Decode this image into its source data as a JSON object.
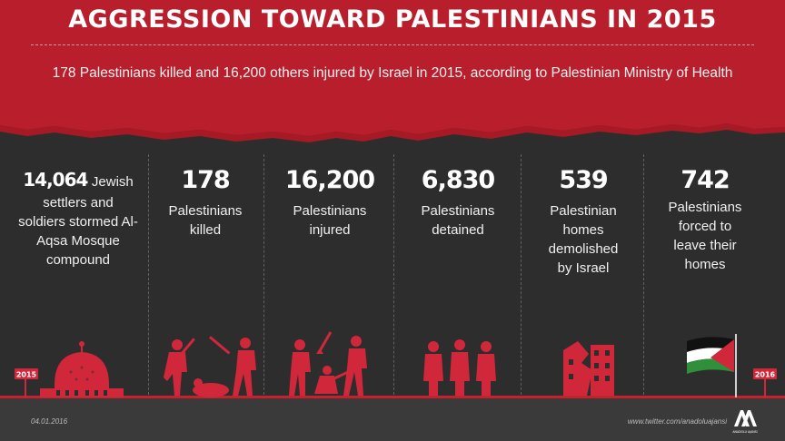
{
  "header": {
    "title": "AGGRESSION TOWARD PALESTINIANS IN 2015",
    "subtitle": "178 Palestinians killed and 16,200 others injured by Israel in 2015, according to Palestinian Ministry of Health"
  },
  "stats": {
    "aqsa": {
      "value": "14,064",
      "label_head": "Jewish",
      "label_rest": "settlers and soldiers stormed Al-Aqsa Mosque compound"
    },
    "killed": {
      "value": "178",
      "label": "Palestinians killed"
    },
    "injured": {
      "value": "16,200",
      "label": "Palestinians injured"
    },
    "detained": {
      "value": "6,830",
      "label": "Palestinians detained"
    },
    "demolished": {
      "value": "539",
      "label": "Palestinian homes demolished by Israel"
    },
    "displaced": {
      "value": "742",
      "label": "Palestinians forced to leave their homes"
    }
  },
  "signs": {
    "left": "2015",
    "right": "2016"
  },
  "footer": {
    "date": "04.01.2016",
    "url": "www.twitter.com/anadoluajansi",
    "logo_text": "ANADOLU AJANSI"
  },
  "colors": {
    "red": "#c8202c",
    "dark": "#2d2d2d",
    "illustration": "#d0283a"
  },
  "icons": [
    "dome-of-the-rock-icon",
    "soldiers-beating-icon",
    "clashes-icon",
    "detained-people-icon",
    "demolished-building-icon",
    "palestinian-flag-icon"
  ]
}
